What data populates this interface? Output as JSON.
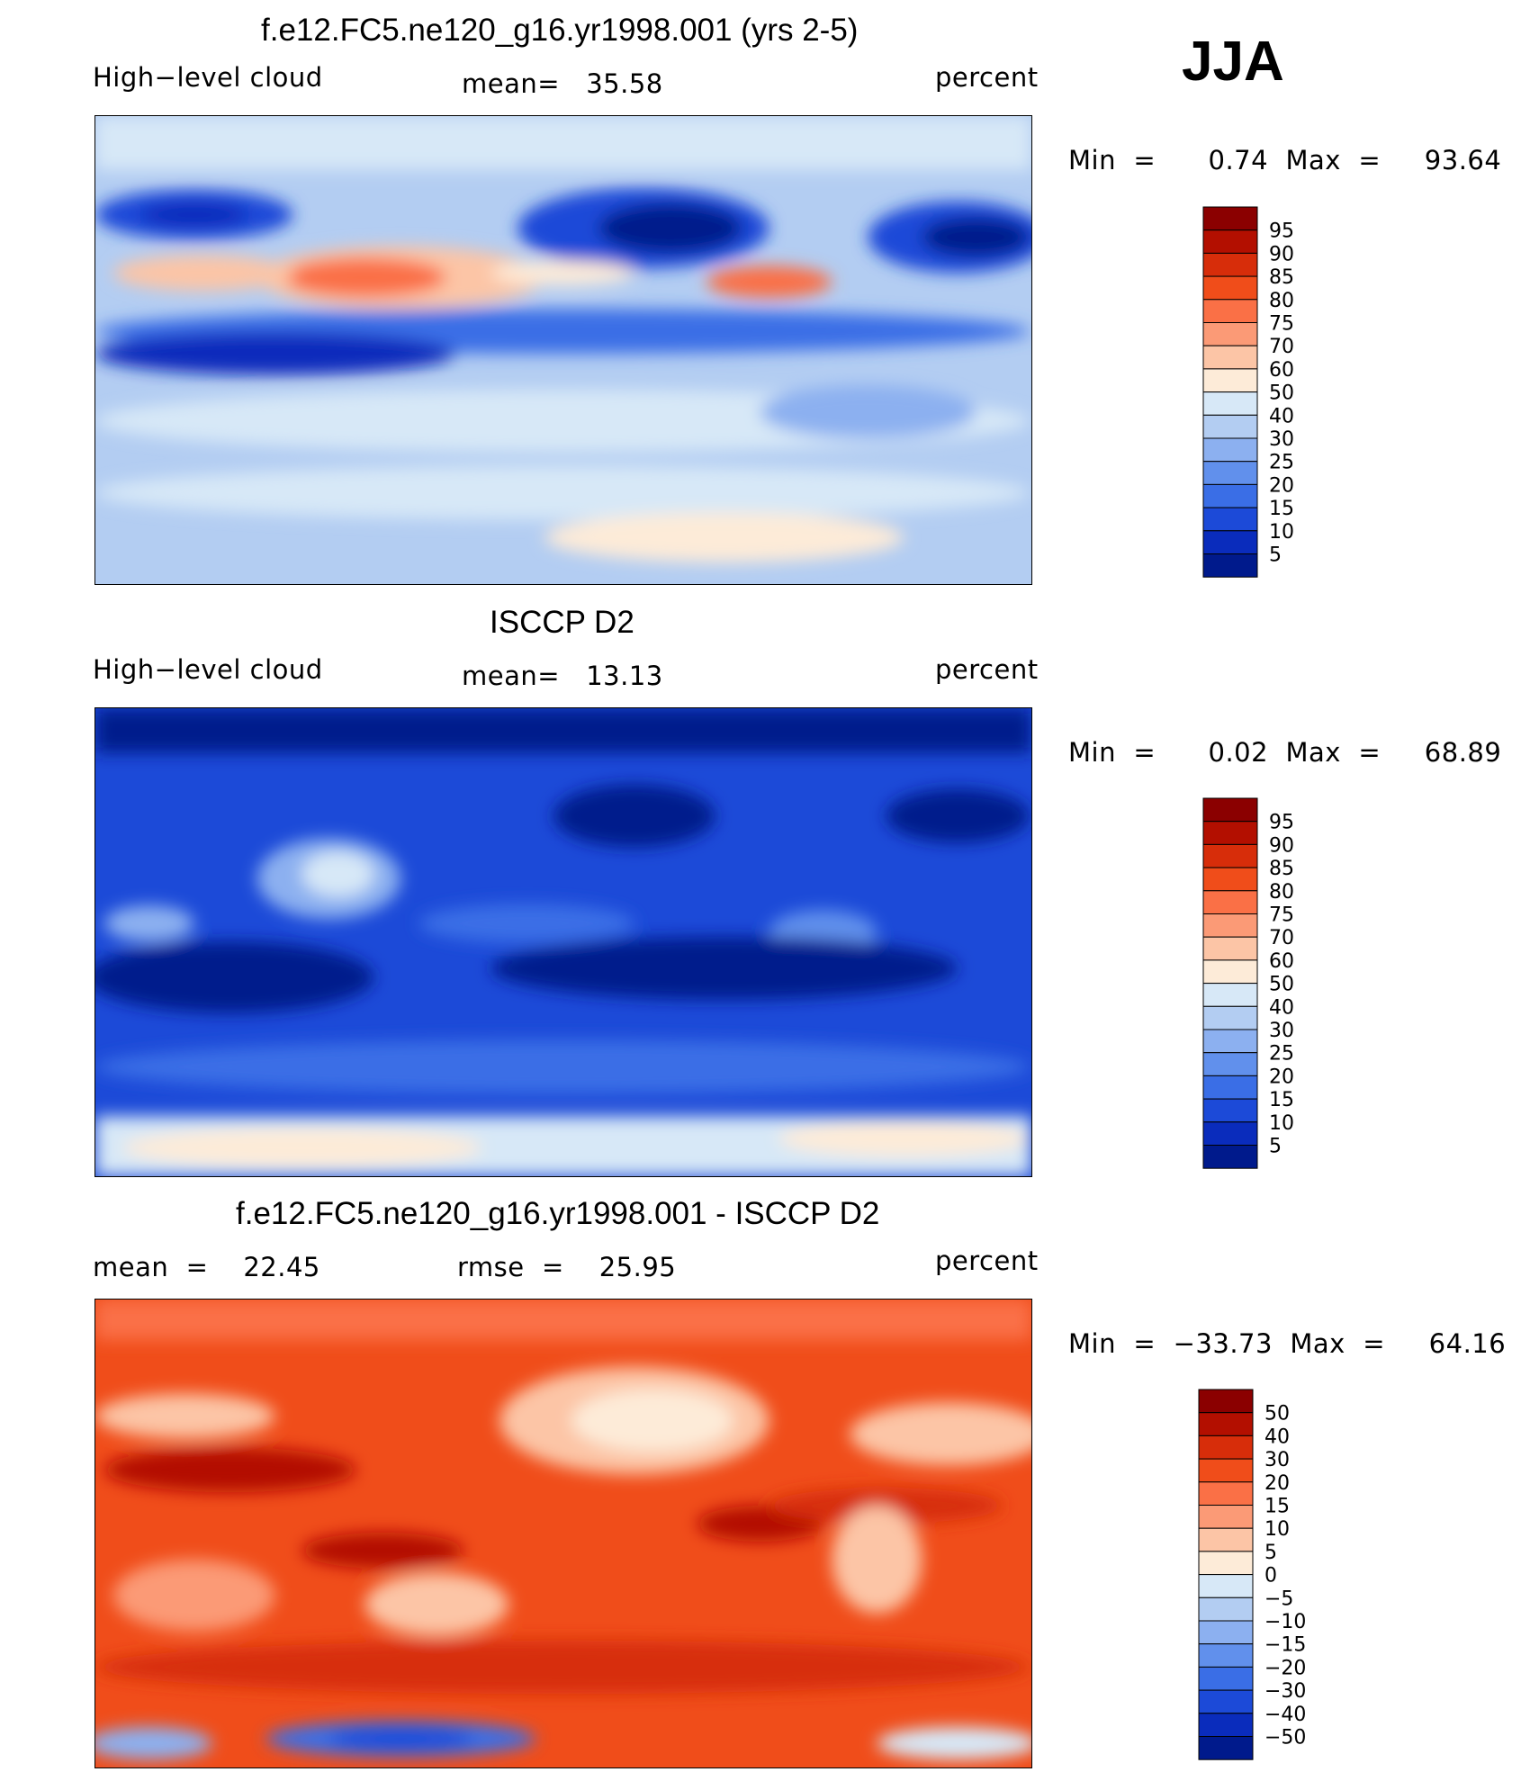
{
  "season": "JJA",
  "panels": [
    {
      "title": "f.e12.FC5.ne120_g16.yr1998.001 (yrs 2-5)",
      "left_label": "High−level cloud",
      "stat": "mean=   35.58",
      "units": "percent",
      "minmax": "Min  =      0.74  Max  =     93.64",
      "colorbar": {
        "labels": [
          "95",
          "90",
          "85",
          "80",
          "75",
          "70",
          "60",
          "50",
          "40",
          "30",
          "25",
          "20",
          "15",
          "10",
          "5"
        ],
        "colors": [
          "#8b0000",
          "#b30f00",
          "#d72d0a",
          "#f04d1a",
          "#fa7046",
          "#fb9a76",
          "#fcc5a6",
          "#fdebd8",
          "#d7e8f7",
          "#b3cdf2",
          "#8cb0f0",
          "#6190ec",
          "#3a6ee6",
          "#1c4ad8",
          "#0a2cbc",
          "#001a8c"
        ]
      }
    },
    {
      "title": "ISCCP D2",
      "left_label": "High−level cloud",
      "stat": "mean=   13.13",
      "units": "percent",
      "minmax": "Min  =      0.02  Max  =     68.89",
      "colorbar": {
        "labels": [
          "95",
          "90",
          "85",
          "80",
          "75",
          "70",
          "60",
          "50",
          "40",
          "30",
          "25",
          "20",
          "15",
          "10",
          "5"
        ],
        "colors": [
          "#8b0000",
          "#b30f00",
          "#d72d0a",
          "#f04d1a",
          "#fa7046",
          "#fb9a76",
          "#fcc5a6",
          "#fdebd8",
          "#d7e8f7",
          "#b3cdf2",
          "#8cb0f0",
          "#6190ec",
          "#3a6ee6",
          "#1c4ad8",
          "#0a2cbc",
          "#001a8c"
        ]
      }
    },
    {
      "title": "f.e12.FC5.ne120_g16.yr1998.001 - ISCCP D2",
      "left_label": "mean  =    22.45",
      "stat": "rmse  =    25.95",
      "units": "percent",
      "minmax": "Min  =  −33.73  Max  =     64.16",
      "colorbar": {
        "labels": [
          "50",
          "40",
          "30",
          "20",
          "15",
          "10",
          "5",
          "0",
          "−5",
          "−10",
          "−15",
          "−20",
          "−30",
          "−40",
          "−50"
        ],
        "colors": [
          "#8b0000",
          "#b30f00",
          "#d72d0a",
          "#f04d1a",
          "#fa7046",
          "#fb9a76",
          "#fcc5a6",
          "#fdebd8",
          "#d7e8f7",
          "#b3cdf2",
          "#8cb0f0",
          "#6190ec",
          "#3a6ee6",
          "#1c4ad8",
          "#0a2cbc",
          "#001a8c"
        ]
      }
    }
  ],
  "chart_data": [
    {
      "type": "heatmap",
      "title": "f.e12.FC5.ne120_g16.yr1998.001 (yrs 2-5)",
      "variable": "High−level cloud",
      "units": "percent",
      "mean": 35.58,
      "min": 0.74,
      "max": 93.64,
      "levels": [
        5,
        10,
        15,
        20,
        25,
        30,
        40,
        50,
        60,
        70,
        75,
        80,
        85,
        90,
        95
      ]
    },
    {
      "type": "heatmap",
      "title": "ISCCP D2",
      "variable": "High−level cloud",
      "units": "percent",
      "mean": 13.13,
      "min": 0.02,
      "max": 68.89,
      "levels": [
        5,
        10,
        15,
        20,
        25,
        30,
        40,
        50,
        60,
        70,
        75,
        80,
        85,
        90,
        95
      ]
    },
    {
      "type": "heatmap",
      "title": "f.e12.FC5.ne120_g16.yr1998.001 - ISCCP D2",
      "units": "percent",
      "mean": 22.45,
      "rmse": 25.95,
      "min": -33.73,
      "max": 64.16,
      "levels": [
        -50,
        -40,
        -30,
        -20,
        -15,
        -10,
        -5,
        0,
        5,
        10,
        15,
        20,
        30,
        40,
        50
      ]
    }
  ]
}
